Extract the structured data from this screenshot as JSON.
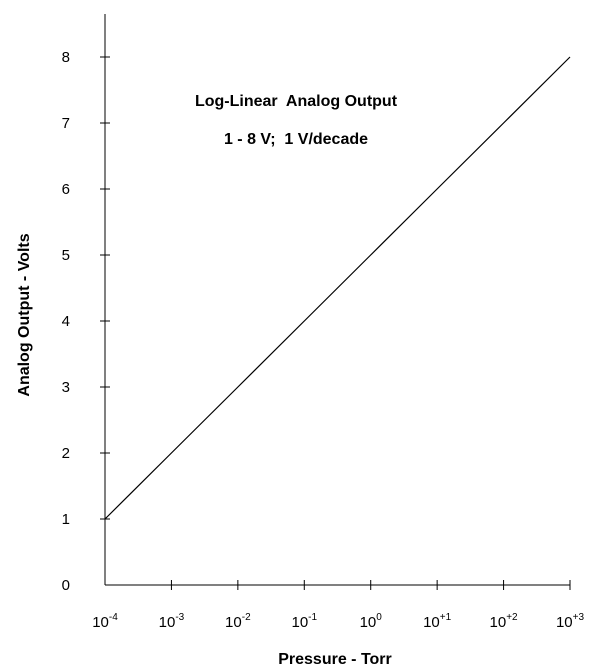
{
  "chart_data": {
    "type": "line",
    "xlabel": "Pressure - Torr",
    "ylabel": "Analog Output - Volts",
    "x_scale": "log",
    "x_ticks": [
      {
        "base": "10",
        "exp": "-4",
        "value": 0.0001
      },
      {
        "base": "10",
        "exp": "-3",
        "value": 0.001
      },
      {
        "base": "10",
        "exp": "-2",
        "value": 0.01
      },
      {
        "base": "10",
        "exp": "-1",
        "value": 0.1
      },
      {
        "base": "10",
        "exp": "0",
        "value": 1
      },
      {
        "base": "10",
        "exp": "+1",
        "value": 10
      },
      {
        "base": "10",
        "exp": "+2",
        "value": 100
      },
      {
        "base": "10",
        "exp": "+3",
        "value": 1000
      }
    ],
    "y_ticks": [
      "0",
      "1",
      "2",
      "3",
      "4",
      "5",
      "6",
      "7",
      "8"
    ],
    "xlim": [
      0.0001,
      1000
    ],
    "ylim": [
      0,
      8
    ],
    "grid": false,
    "series": [
      {
        "x": [
          0.0001,
          0.001,
          0.01,
          0.1,
          1,
          10,
          100,
          1000
        ],
        "y": [
          1,
          2,
          3,
          4,
          5,
          6,
          7,
          8
        ]
      }
    ],
    "annotations": [
      "Log-Linear  Analog Output",
      "1 - 8 V;  1 V/decade"
    ]
  }
}
